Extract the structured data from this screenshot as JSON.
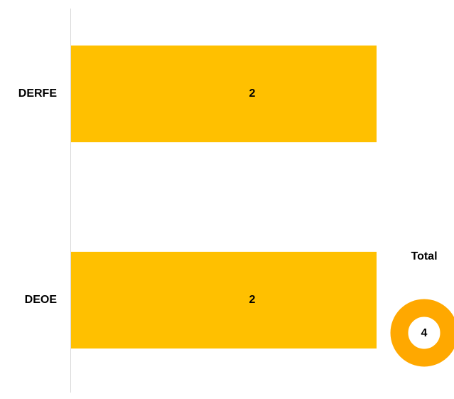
{
  "chart_data": {
    "type": "bar",
    "orientation": "horizontal",
    "categories": [
      "DERFE",
      "DEOE"
    ],
    "values": [
      2,
      2
    ],
    "color": "#ffc000"
  },
  "total": {
    "label": "Total",
    "value": 4,
    "color": "#ffa800"
  }
}
